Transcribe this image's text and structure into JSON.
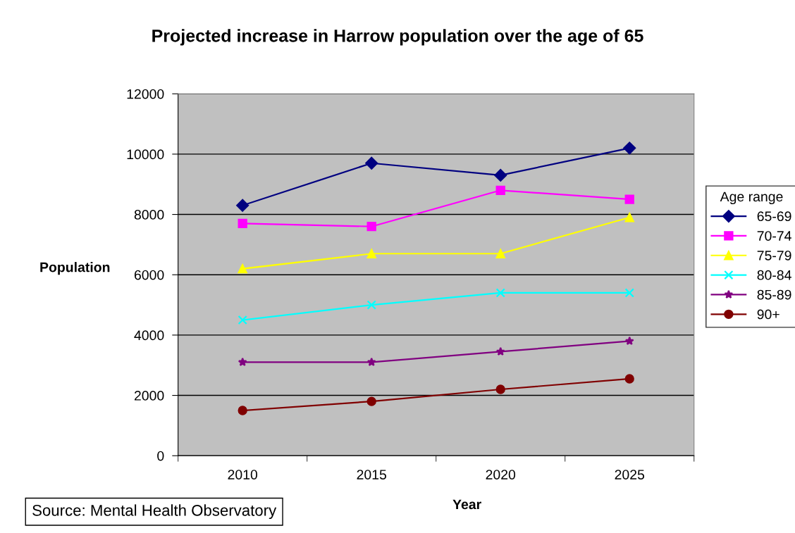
{
  "chart_data": {
    "type": "line",
    "title": "Projected increase in Harrow population over the age of 65",
    "xlabel": "Year",
    "ylabel": "Population",
    "legend_title": "Age range",
    "categories": [
      "2010",
      "2015",
      "2020",
      "2025"
    ],
    "series": [
      {
        "name": "65-69",
        "color": "#000080",
        "marker": "diamond",
        "values": [
          8300,
          9700,
          9300,
          10200
        ]
      },
      {
        "name": "70-74",
        "color": "#ff00ff",
        "marker": "square",
        "values": [
          7700,
          7600,
          8800,
          8500
        ]
      },
      {
        "name": "75-79",
        "color": "#ffff00",
        "marker": "triangle",
        "values": [
          6200,
          6700,
          6700,
          7900
        ]
      },
      {
        "name": "80-84",
        "color": "#00ffff",
        "marker": "cross",
        "values": [
          4500,
          5000,
          5400,
          5400
        ]
      },
      {
        "name": "85-89",
        "color": "#800080",
        "marker": "star",
        "values": [
          3100,
          3100,
          3450,
          3800
        ]
      },
      {
        "name": "90+",
        "color": "#800000",
        "marker": "circle",
        "values": [
          1500,
          1800,
          2200,
          2550
        ]
      }
    ],
    "ylim": [
      0,
      12000
    ],
    "yticks": [
      0,
      2000,
      4000,
      6000,
      8000,
      10000,
      12000
    ],
    "grid": "y",
    "legend": "right",
    "line_style": "solid",
    "annotations": [
      "Source: Mental Health Observatory"
    ]
  }
}
